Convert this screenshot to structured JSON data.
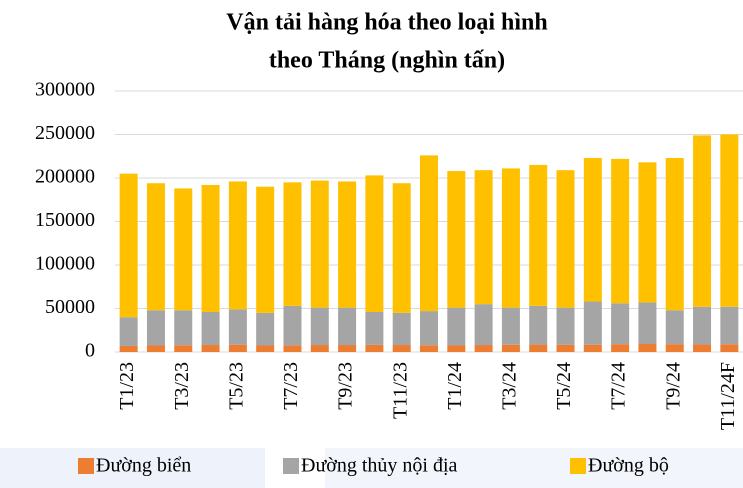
{
  "chart_data": {
    "type": "stacked_bar",
    "title": [
      "Vận tải hàng hóa theo loại hình",
      "theo Tháng (nghìn tấn)"
    ],
    "categories": [
      "T1/23",
      null,
      "T3/23",
      null,
      "T5/23",
      null,
      "T7/23",
      null,
      "T9/23",
      null,
      "T11/23",
      null,
      "T1/24",
      null,
      "T3/24",
      null,
      "T5/24",
      null,
      "T7/24",
      null,
      "T9/24",
      null,
      "T11/24F"
    ],
    "series": [
      {
        "name": "Đường biển",
        "color": "#ed7d31",
        "values": [
          7000,
          7500,
          7800,
          8000,
          8200,
          7500,
          7600,
          8000,
          8000,
          8200,
          8000,
          7800,
          7500,
          8000,
          8300,
          8500,
          8200,
          8400,
          9000,
          9200,
          9000,
          8700,
          8800
        ]
      },
      {
        "name": "Đường thủy nội địa",
        "color": "#a5a5a5",
        "values": [
          33000,
          40500,
          40200,
          38000,
          40800,
          37500,
          45400,
          43000,
          43000,
          37800,
          37000,
          39200,
          43500,
          47000,
          42700,
          44500,
          42800,
          49600,
          47000,
          47800,
          39000,
          43300,
          43200
        ]
      },
      {
        "name": "Đường bộ",
        "color": "#ffc000",
        "values": [
          165000,
          146000,
          140000,
          146000,
          147000,
          145000,
          142000,
          146000,
          145000,
          157000,
          149000,
          179000,
          157000,
          154000,
          160000,
          162000,
          158000,
          165000,
          166000,
          161000,
          175000,
          197000,
          198000
        ]
      }
    ],
    "ylim": [
      0,
      300000
    ],
    "yticks": [
      0,
      50000,
      100000,
      150000,
      200000,
      250000,
      300000
    ],
    "grid": true,
    "legend": "bottom"
  }
}
